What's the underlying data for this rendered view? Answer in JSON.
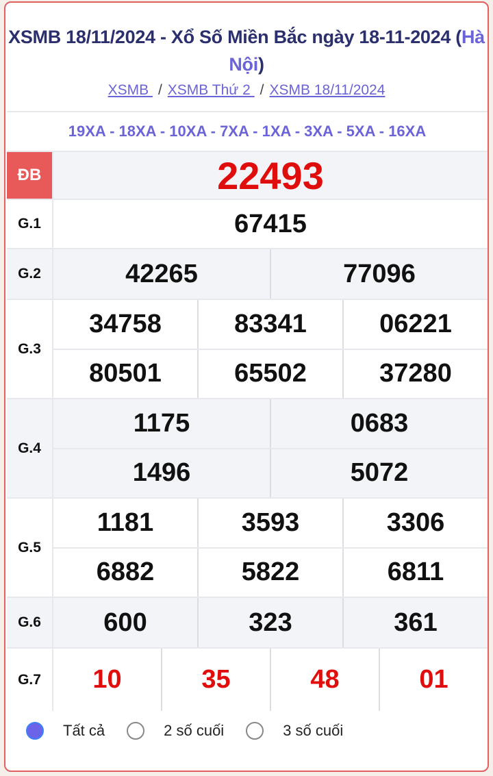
{
  "header": {
    "title_main": "XSMB 18/11/2024 - Xổ Số Miền Bắc ngày 18-11-2024 (",
    "title_location": "Hà Nội",
    "title_close": ")"
  },
  "breadcrumb": [
    {
      "label": "XSMB "
    },
    {
      "label": "XSMB Thứ 2 "
    },
    {
      "label": "XSMB 18/11/2024"
    }
  ],
  "breadcrumb_sep": "/",
  "codes": "19XA - 18XA - 10XA - 7XA - 1XA - 3XA - 5XA - 16XA",
  "prizes": [
    {
      "label": "ĐB",
      "rows": [
        [
          "22493"
        ]
      ]
    },
    {
      "label": "G.1",
      "rows": [
        [
          "67415"
        ]
      ]
    },
    {
      "label": "G.2",
      "rows": [
        [
          "42265",
          "77096"
        ]
      ]
    },
    {
      "label": "G.3",
      "rows": [
        [
          "34758",
          "83341",
          "06221"
        ],
        [
          "80501",
          "65502",
          "37280"
        ]
      ]
    },
    {
      "label": "G.4",
      "rows": [
        [
          "1175",
          "0683"
        ],
        [
          "1496",
          "5072"
        ]
      ]
    },
    {
      "label": "G.5",
      "rows": [
        [
          "1181",
          "3593",
          "3306"
        ],
        [
          "6882",
          "5822",
          "6811"
        ]
      ]
    },
    {
      "label": "G.6",
      "rows": [
        [
          "600",
          "323",
          "361"
        ]
      ]
    },
    {
      "label": "G.7",
      "rows": [
        [
          "10",
          "35",
          "48",
          "01"
        ]
      ]
    }
  ],
  "filters": [
    {
      "label": "Tất cả",
      "selected": true
    },
    {
      "label": "2 số cuối",
      "selected": false
    },
    {
      "label": "3 số cuối",
      "selected": false
    }
  ],
  "colors": {
    "accent": "#6b63d8",
    "title": "#2b2f6e",
    "special": "#e00d0d",
    "border": "#e06060"
  }
}
